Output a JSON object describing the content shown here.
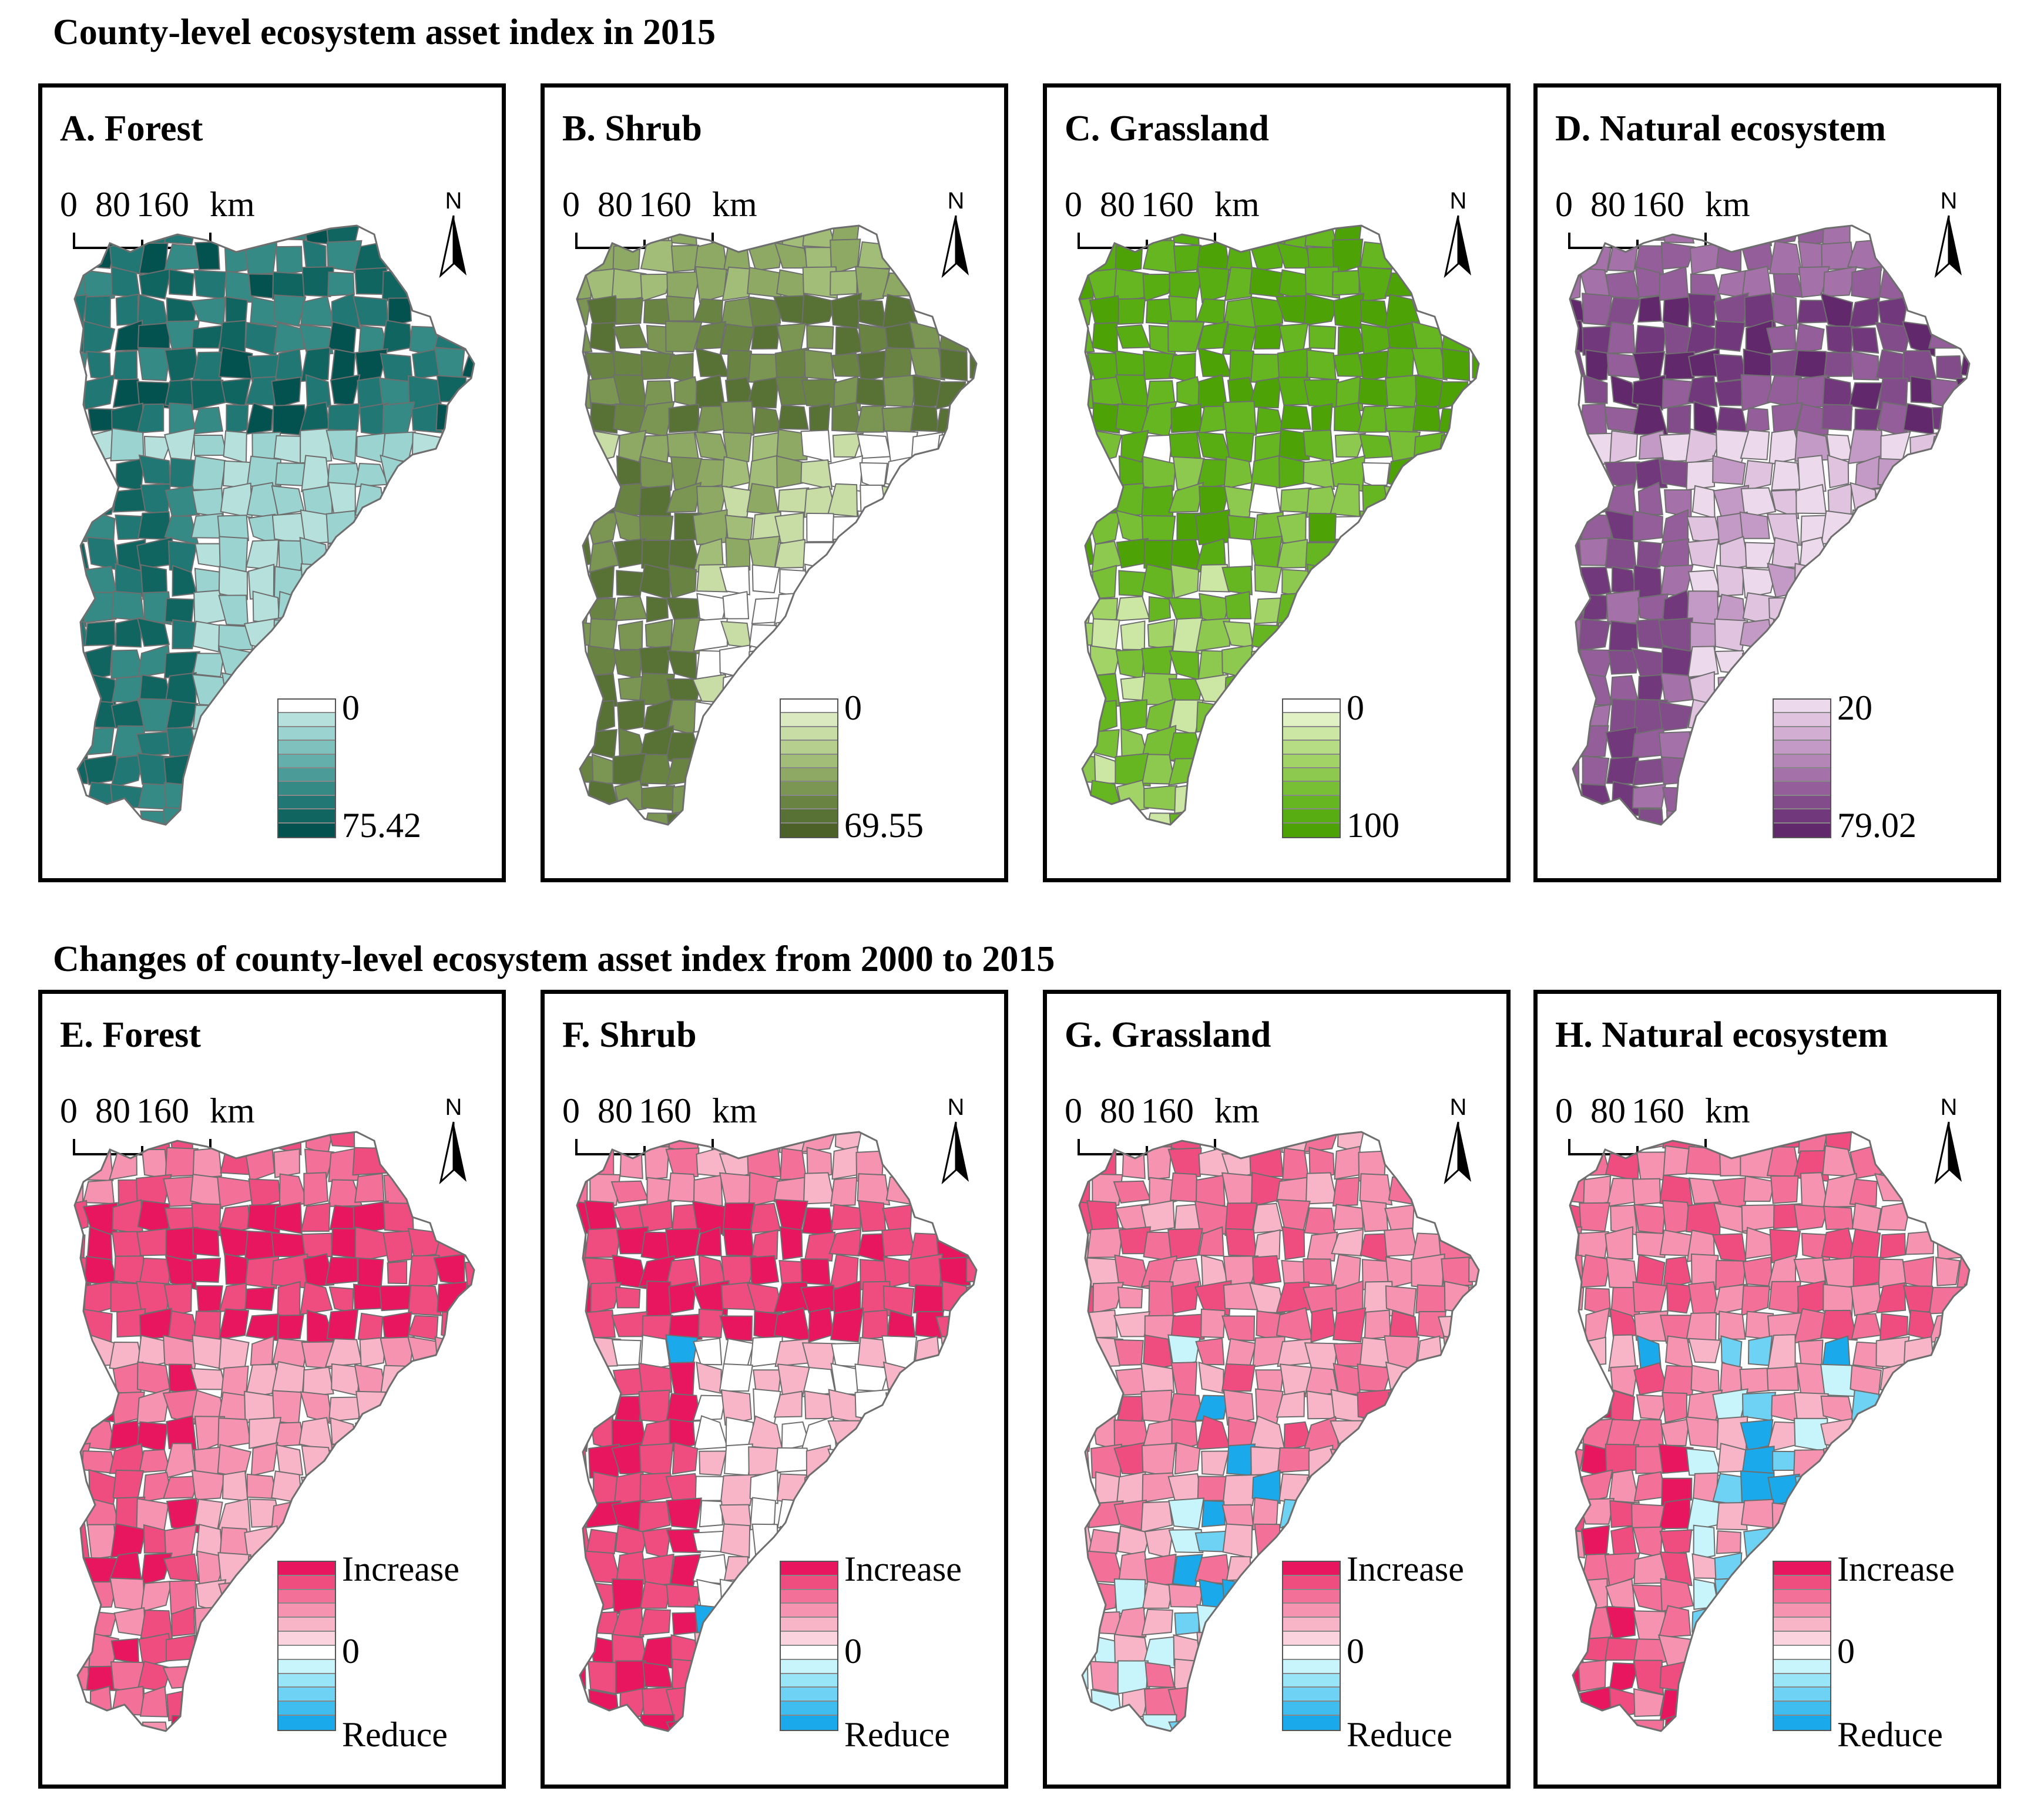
{
  "figure": {
    "section_top_title": "County-level ecosystem asset index in 2015",
    "section_bottom_title": "Changes of county-level ecosystem asset index from 2000 to 2015"
  },
  "scale": {
    "l0": "0",
    "l1": "80",
    "l2": "160",
    "unit": "km"
  },
  "north_label": "N",
  "panels_top": [
    {
      "title": "A. Forest",
      "legend_min": "0",
      "legend_max": "75.42",
      "ramp": [
        "#ffffff",
        "#b6e0dc",
        "#9ad3cf",
        "#7fc2bd",
        "#64afab",
        "#4b9c98",
        "#368a86",
        "#217773",
        "#106561",
        "#04524f"
      ]
    },
    {
      "title": "B. Shrub",
      "legend_min": "0",
      "legend_max": "69.55",
      "ramp": [
        "#ffffff",
        "#dbe9c1",
        "#c8dda6",
        "#b6cf8f",
        "#a2bd78",
        "#8ea964",
        "#7b9653",
        "#698343",
        "#587134",
        "#4b6128"
      ]
    },
    {
      "title": "C. Grassland",
      "legend_min": "0",
      "legend_max": "100",
      "ramp": [
        "#ffffff",
        "#e2f1c4",
        "#cce7a3",
        "#b6dd84",
        "#a1d367",
        "#8cc94e",
        "#78bf36",
        "#66b622",
        "#58ad12",
        "#4da305"
      ]
    },
    {
      "title": "D. Natural ecosystem",
      "legend_min": "20",
      "legend_max": "79.02",
      "ramp": [
        "#ecd9ec",
        "#dfc3df",
        "#d2aed2",
        "#c39ac5",
        "#b486b7",
        "#a472a8",
        "#935e99",
        "#824b8a",
        "#71397b",
        "#62286c"
      ]
    }
  ],
  "panels_bottom": [
    {
      "title": "E. Forest"
    },
    {
      "title": "F. Shrub"
    },
    {
      "title": "G. Grassland"
    },
    {
      "title": "H. Natural ecosystem"
    }
  ],
  "change_legend": {
    "top": "Increase",
    "mid": "0",
    "bottom": "Reduce",
    "ramp": [
      "#e8155f",
      "#ef4d80",
      "#f37098",
      "#f693b0",
      "#f9b5c8",
      "#fbd3de",
      "#ffffff",
      "#c7f5fb",
      "#98e5f7",
      "#6dd2f3",
      "#3fbdef",
      "#1aa9ea"
    ]
  },
  "map_colors": {
    "border": "#6e6e6e",
    "forest_fill": [
      "#04524f",
      "#106561",
      "#217773",
      "#368a86",
      "#64afab",
      "#9ad3cf",
      "#b6e0dc"
    ],
    "shrub_fill": [
      "#587134",
      "#698343",
      "#7b9653",
      "#8ea964",
      "#a2bd78",
      "#c8dda6",
      "#ffffff"
    ],
    "grass_fill": [
      "#4da305",
      "#58ad12",
      "#66b622",
      "#78bf36",
      "#8cc94e",
      "#a1d367",
      "#cce7a3",
      "#ffffff"
    ],
    "natural_fill": [
      "#62286c",
      "#71397b",
      "#824b8a",
      "#935e99",
      "#a472a8",
      "#c39ac5",
      "#dfc3df",
      "#ecd9ec"
    ],
    "change_pos": [
      "#e8155f",
      "#ef4d80",
      "#f37098",
      "#f693b0",
      "#f9b5c8"
    ],
    "change_neg": [
      "#c7f5fb",
      "#6dd2f3",
      "#1aa9ea"
    ]
  }
}
